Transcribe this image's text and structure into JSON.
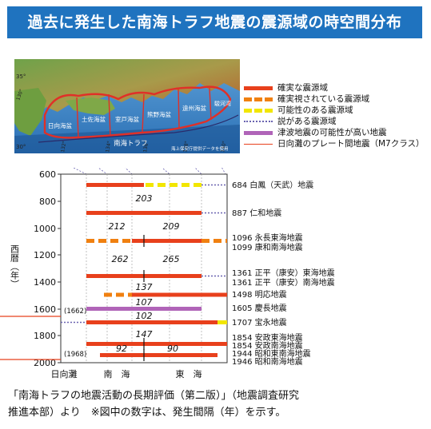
{
  "title": "過去に発生した南海トラフ地震の震源域の時空間分布",
  "map": {
    "lat_labels": [
      "35°",
      "30°"
    ],
    "lon_labels": [
      "130°",
      "132°",
      "134°",
      "136°",
      "138°",
      "140°"
    ],
    "segments": [
      "日向海盆",
      "土佐海盆",
      "室戸海盆",
      "熊野海盆",
      "遠州海盆",
      "駿河湾"
    ],
    "trough_label": "南海トラフ",
    "credit": "海上保安庁提供データを使用"
  },
  "legend": [
    {
      "label": "確実な震源域",
      "style": "solid",
      "color": "#e8401c"
    },
    {
      "label": "確実視されている震源域",
      "style": "dashed",
      "color": "#f08010"
    },
    {
      "label": "可能性のある震源域",
      "style": "dashed",
      "color": "#f2e600"
    },
    {
      "label": "説がある震源域",
      "style": "dotted",
      "color": "#6a63b0"
    },
    {
      "label": "津波地震の可能性が高い地震",
      "style": "solid",
      "color": "#b064b8"
    },
    {
      "label": "日向灘のプレート間地震（M7クラス）",
      "style": "thin",
      "color": "#e8401c"
    }
  ],
  "timeline": {
    "y_axis_label": "西暦（年）",
    "y_ticks": [
      "600",
      "800",
      "1000",
      "1200",
      "1400",
      "1600",
      "1800",
      "2000"
    ],
    "x_labels": {
      "hyuga": "日向灘",
      "nankai": "南　海",
      "tokai": "東　海"
    },
    "events": [
      {
        "label": "684 白鳳（天武）地震"
      },
      {
        "label": "887 仁和地震"
      },
      {
        "label": "1096 永長東海地震"
      },
      {
        "label": "1099 康和南海地震"
      },
      {
        "label": "1361 正平（康安）東海地震"
      },
      {
        "label": "1361 正平（康安）南海地震"
      },
      {
        "label": "1498 明応地震"
      },
      {
        "label": "1605 慶長地震"
      },
      {
        "label": "1707 宝永地震"
      },
      {
        "label": "1854 安政東海地震"
      },
      {
        "label": "1854 安政南海地震"
      },
      {
        "label": "1944 昭和東南海地震"
      },
      {
        "label": "1946 昭和南海地震"
      }
    ],
    "intervals": [
      "203",
      "212",
      "209",
      "262",
      "265",
      "137",
      "107",
      "102",
      "147",
      "92",
      "90"
    ],
    "hyuga_events": [
      "(1662)",
      "(1968)"
    ]
  },
  "caption": {
    "line1": "「南海トラフの地震活動の長期評価（第二版）」（地震調査研究",
    "line2": "推進本部）より　※図中の数字は、発生間隔（年）を示す。"
  }
}
